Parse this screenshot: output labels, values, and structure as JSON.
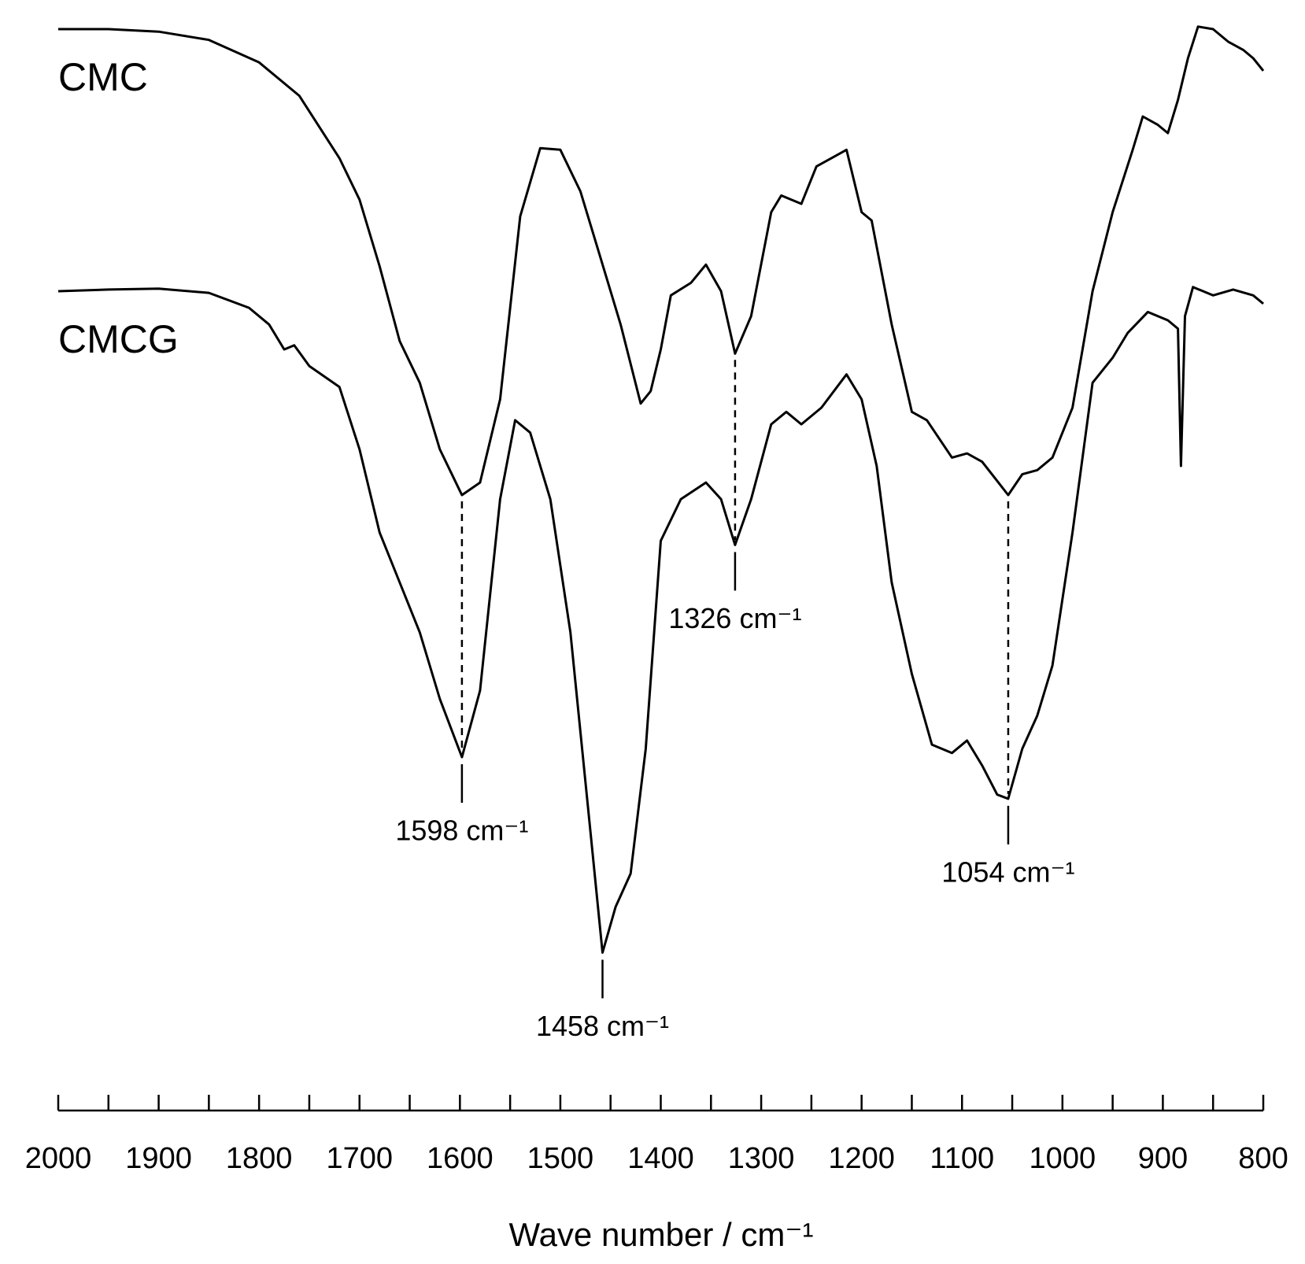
{
  "chart_data": {
    "type": "line",
    "x_label": "Wave number / cm⁻¹",
    "xlim": [
      2000,
      800
    ],
    "ylim": [
      0,
      140
    ],
    "xticks": [
      2000,
      1900,
      1800,
      1700,
      1600,
      1500,
      1400,
      1300,
      1200,
      1100,
      1000,
      900,
      800
    ],
    "xminorticks": [
      1950,
      1850,
      1750,
      1650,
      1550,
      1450,
      1350,
      1250,
      1150,
      1050,
      950,
      850
    ],
    "series": [
      {
        "name": "CMC",
        "color": "#000000",
        "x": [
          2000,
          1950,
          1900,
          1850,
          1800,
          1760,
          1720,
          1700,
          1680,
          1660,
          1640,
          1620,
          1600,
          1598,
          1580,
          1560,
          1540,
          1520,
          1500,
          1480,
          1460,
          1440,
          1420,
          1410,
          1400,
          1390,
          1370,
          1355,
          1340,
          1326,
          1310,
          1290,
          1280,
          1260,
          1245,
          1230,
          1215,
          1200,
          1190,
          1170,
          1150,
          1135,
          1110,
          1095,
          1080,
          1054,
          1040,
          1025,
          1010,
          990,
          970,
          950,
          930,
          920,
          905,
          895,
          885,
          875,
          865,
          850,
          835,
          820,
          810,
          800
        ],
        "values": [
          136.5,
          136.5,
          136.2,
          135.2,
          132.5,
          128.5,
          121,
          116,
          108,
          99,
          94,
          86,
          81,
          80.5,
          82,
          92,
          114,
          122.2,
          122,
          117,
          109,
          101,
          91.5,
          93,
          98,
          104.5,
          106,
          108.2,
          105,
          97.5,
          102,
          114.5,
          116.5,
          115.5,
          120,
          121,
          122,
          114.5,
          113.5,
          101,
          90.5,
          89.5,
          85,
          85.5,
          84.5,
          80.5,
          83,
          83.5,
          85,
          91,
          105,
          114.5,
          122,
          126,
          125,
          124,
          128,
          133,
          136.8,
          136.5,
          135,
          134,
          133,
          131.5
        ]
      },
      {
        "name": "CMCG",
        "color": "#000000",
        "x": [
          2000,
          1950,
          1900,
          1850,
          1810,
          1790,
          1775,
          1765,
          1750,
          1720,
          1700,
          1680,
          1660,
          1640,
          1620,
          1598,
          1580,
          1560,
          1545,
          1530,
          1510,
          1490,
          1470,
          1458,
          1445,
          1430,
          1415,
          1400,
          1380,
          1355,
          1340,
          1326,
          1310,
          1290,
          1275,
          1260,
          1240,
          1215,
          1200,
          1185,
          1170,
          1150,
          1130,
          1110,
          1095,
          1080,
          1065,
          1054,
          1040,
          1025,
          1010,
          990,
          970,
          950,
          935,
          915,
          895,
          885,
          882,
          878,
          870,
          850,
          830,
          810,
          800
        ],
        "values": [
          105,
          105.2,
          105.3,
          104.8,
          103,
          101,
          98,
          98.5,
          96,
          93.5,
          86,
          76,
          70,
          64,
          56,
          49,
          57,
          80,
          89.5,
          88,
          80,
          64,
          40,
          25.5,
          31,
          35,
          50,
          75,
          80,
          82,
          80,
          74.5,
          80,
          89,
          90.5,
          89,
          91,
          95,
          92,
          84,
          70,
          59,
          50.5,
          49.5,
          51,
          48,
          44.5,
          44,
          50,
          54,
          60,
          76,
          94,
          97,
          100,
          102.5,
          101.5,
          100.5,
          84,
          102,
          105.5,
          104.5,
          105.2,
          104.5,
          103.5
        ]
      }
    ],
    "annotations": [
      {
        "text": "1598 cm⁻¹",
        "x": 1598,
        "dashed": true
      },
      {
        "text": "1458 cm⁻¹",
        "x": 1458,
        "dashed": false
      },
      {
        "text": "1326 cm⁻¹",
        "x": 1326,
        "dashed": true
      },
      {
        "text": "1054 cm⁻¹",
        "x": 1054,
        "dashed": true
      }
    ]
  }
}
